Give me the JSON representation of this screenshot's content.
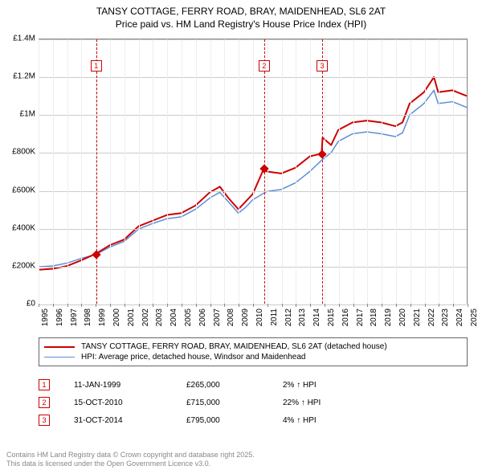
{
  "title": {
    "line1": "TANSY COTTAGE, FERRY ROAD, BRAY, MAIDENHEAD, SL6 2AT",
    "line2": "Price paid vs. HM Land Registry's House Price Index (HPI)"
  },
  "chart": {
    "type": "line",
    "background_color": "#ffffff",
    "grid_color_y": "#cccccc",
    "grid_color_x": "#eeeeee",
    "axis_color": "#888888",
    "xlim": [
      1995,
      2025
    ],
    "ylim": [
      0,
      1400000
    ],
    "ytick_step": 200000,
    "y_ticks": [
      {
        "v": 0,
        "label": "£0"
      },
      {
        "v": 200000,
        "label": "£200K"
      },
      {
        "v": 400000,
        "label": "£400K"
      },
      {
        "v": 600000,
        "label": "£600K"
      },
      {
        "v": 800000,
        "label": "£800K"
      },
      {
        "v": 1000000,
        "label": "£1M"
      },
      {
        "v": 1200000,
        "label": "£1.2M"
      },
      {
        "v": 1400000,
        "label": "£1.4M"
      }
    ],
    "x_ticks": [
      1995,
      1996,
      1997,
      1998,
      1999,
      2000,
      2001,
      2002,
      2003,
      2004,
      2005,
      2006,
      2007,
      2008,
      2009,
      2010,
      2011,
      2012,
      2013,
      2014,
      2015,
      2016,
      2017,
      2018,
      2019,
      2020,
      2021,
      2022,
      2023,
      2024,
      2025
    ],
    "tick_fontsize": 10,
    "title_fontsize": 12,
    "line_width_main": 2,
    "line_width_hpi": 1.5,
    "series": [
      {
        "id": "price_paid",
        "label": "TANSY COTTAGE, FERRY ROAD, BRAY, MAIDENHEAD, SL6 2AT (detached house)",
        "color": "#cc0000",
        "width": 2,
        "data": [
          [
            1995,
            180000
          ],
          [
            1996,
            185000
          ],
          [
            1997,
            200000
          ],
          [
            1998,
            230000
          ],
          [
            1999.03,
            265000
          ],
          [
            2000,
            310000
          ],
          [
            2001,
            340000
          ],
          [
            2002,
            410000
          ],
          [
            2003,
            440000
          ],
          [
            2004,
            470000
          ],
          [
            2005,
            480000
          ],
          [
            2006,
            520000
          ],
          [
            2007,
            590000
          ],
          [
            2007.7,
            620000
          ],
          [
            2008.3,
            560000
          ],
          [
            2009,
            500000
          ],
          [
            2009.5,
            540000
          ],
          [
            2010,
            580000
          ],
          [
            2010.78,
            715000
          ],
          [
            2011,
            700000
          ],
          [
            2012,
            690000
          ],
          [
            2013,
            720000
          ],
          [
            2014,
            780000
          ],
          [
            2014.83,
            795000
          ],
          [
            2014.9,
            880000
          ],
          [
            2015.5,
            840000
          ],
          [
            2016,
            920000
          ],
          [
            2017,
            960000
          ],
          [
            2018,
            970000
          ],
          [
            2019,
            960000
          ],
          [
            2020,
            940000
          ],
          [
            2020.5,
            960000
          ],
          [
            2021,
            1060000
          ],
          [
            2022,
            1120000
          ],
          [
            2022.7,
            1200000
          ],
          [
            2023,
            1120000
          ],
          [
            2024,
            1130000
          ],
          [
            2025,
            1100000
          ]
        ]
      },
      {
        "id": "hpi",
        "label": "HPI: Average price, detached house, Windsor and Maidenhead",
        "color": "#5b8fd6",
        "width": 1.5,
        "data": [
          [
            1995,
            195000
          ],
          [
            1996,
            200000
          ],
          [
            1997,
            215000
          ],
          [
            1998,
            240000
          ],
          [
            1999,
            260000
          ],
          [
            2000,
            300000
          ],
          [
            2001,
            330000
          ],
          [
            2002,
            395000
          ],
          [
            2003,
            425000
          ],
          [
            2004,
            450000
          ],
          [
            2005,
            460000
          ],
          [
            2006,
            500000
          ],
          [
            2007,
            560000
          ],
          [
            2007.7,
            590000
          ],
          [
            2008.3,
            540000
          ],
          [
            2009,
            480000
          ],
          [
            2009.5,
            510000
          ],
          [
            2010,
            550000
          ],
          [
            2010.78,
            585000
          ],
          [
            2011,
            595000
          ],
          [
            2012,
            605000
          ],
          [
            2013,
            640000
          ],
          [
            2014,
            700000
          ],
          [
            2014.83,
            760000
          ],
          [
            2015.5,
            800000
          ],
          [
            2016,
            860000
          ],
          [
            2017,
            900000
          ],
          [
            2018,
            910000
          ],
          [
            2019,
            900000
          ],
          [
            2020,
            885000
          ],
          [
            2020.5,
            905000
          ],
          [
            2021,
            1000000
          ],
          [
            2022,
            1060000
          ],
          [
            2022.7,
            1130000
          ],
          [
            2023,
            1060000
          ],
          [
            2024,
            1070000
          ],
          [
            2025,
            1040000
          ]
        ]
      }
    ],
    "marker_lines": [
      {
        "n": "1",
        "x": 1999.03,
        "box_y": 1260000
      },
      {
        "n": "2",
        "x": 2010.78,
        "box_y": 1260000
      },
      {
        "n": "3",
        "x": 2014.83,
        "box_y": 1260000
      }
    ],
    "sale_points": [
      {
        "x": 1999.03,
        "y": 265000,
        "color": "#cc0000"
      },
      {
        "x": 2010.78,
        "y": 715000,
        "color": "#cc0000"
      },
      {
        "x": 2014.83,
        "y": 795000,
        "color": "#cc0000"
      }
    ],
    "marker_color": "#cc0000",
    "marker_dash": "4,3"
  },
  "legend": {
    "items": [
      {
        "color": "#cc0000",
        "width": 2,
        "label": "TANSY COTTAGE, FERRY ROAD, BRAY, MAIDENHEAD, SL6 2AT (detached house)"
      },
      {
        "color": "#5b8fd6",
        "width": 1.5,
        "label": "HPI: Average price, detached house, Windsor and Maidenhead"
      }
    ]
  },
  "marker_table": [
    {
      "n": "1",
      "date": "11-JAN-1999",
      "price": "£265,000",
      "delta": "2% ↑ HPI"
    },
    {
      "n": "2",
      "date": "15-OCT-2010",
      "price": "£715,000",
      "delta": "22% ↑ HPI"
    },
    {
      "n": "3",
      "date": "31-OCT-2014",
      "price": "£795,000",
      "delta": "4% ↑ HPI"
    }
  ],
  "footer": {
    "line1": "Contains HM Land Registry data © Crown copyright and database right 2025.",
    "line2": "This data is licensed under the Open Government Licence v3.0."
  }
}
